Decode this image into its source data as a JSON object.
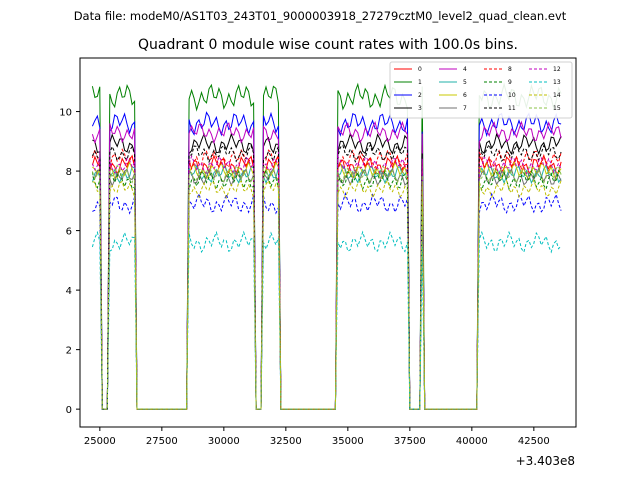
{
  "chart_data": {
    "type": "line",
    "suptitle": "Data file: modeM0/AS1T03_243T01_9000003918_27279cztM0_level2_quad_clean.evt",
    "title": "Quadrant 0 module wise count rates with 100.0s bins.",
    "xlabel": "",
    "ylabel": "",
    "x_offset_label": "+3.403e8",
    "xlim": [
      24200,
      44200
    ],
    "ylim": [
      -0.6,
      11.8
    ],
    "x_ticks": [
      25000,
      27500,
      30000,
      32500,
      35000,
      37500,
      40000,
      42500
    ],
    "x_tick_labels": [
      "25000",
      "27500",
      "30000",
      "32500",
      "35000",
      "37500",
      "40000",
      "42500"
    ],
    "y_ticks": [
      0,
      2,
      4,
      6,
      8,
      10
    ],
    "y_tick_labels": [
      "0",
      "2",
      "4",
      "6",
      "8",
      "10"
    ],
    "legend_position": "top-right",
    "segments": [
      {
        "start": 24700,
        "end": 25000,
        "kind": "full"
      },
      {
        "start": 25100,
        "end": 25300,
        "kind": "gap"
      },
      {
        "start": 25400,
        "end": 26400,
        "kind": "full"
      },
      {
        "start": 26500,
        "end": 28500,
        "kind": "gap"
      },
      {
        "start": 28600,
        "end": 31200,
        "kind": "full"
      },
      {
        "start": 31300,
        "end": 31500,
        "kind": "gap"
      },
      {
        "start": 31600,
        "end": 32200,
        "kind": "full"
      },
      {
        "start": 32300,
        "end": 34500,
        "kind": "gap"
      },
      {
        "start": 34600,
        "end": 37400,
        "kind": "full"
      },
      {
        "start": 37500,
        "end": 37900,
        "kind": "gap"
      },
      {
        "start": 38000,
        "end": 38000,
        "kind": "full"
      },
      {
        "start": 38100,
        "end": 40200,
        "kind": "gap"
      },
      {
        "start": 40300,
        "end": 43600,
        "kind": "full"
      }
    ],
    "series": [
      {
        "name": "0",
        "color": "#ff0000",
        "dash": "solid",
        "level": 8.2,
        "amp": 0.35
      },
      {
        "name": "1",
        "color": "#008000",
        "dash": "solid",
        "level": 10.5,
        "amp": 0.45
      },
      {
        "name": "2",
        "color": "#0000ff",
        "dash": "solid",
        "level": 9.6,
        "amp": 0.4
      },
      {
        "name": "3",
        "color": "#000000",
        "dash": "solid",
        "level": 8.9,
        "amp": 0.35
      },
      {
        "name": "4",
        "color": "#bf00bf",
        "dash": "solid",
        "level": 9.3,
        "amp": 0.35
      },
      {
        "name": "5",
        "color": "#20b2aa",
        "dash": "solid",
        "level": 7.9,
        "amp": 0.3
      },
      {
        "name": "6",
        "color": "#c8c800",
        "dash": "solid",
        "level": 8.0,
        "amp": 0.3
      },
      {
        "name": "7",
        "color": "#707070",
        "dash": "solid",
        "level": 7.8,
        "amp": 0.3
      },
      {
        "name": "8",
        "color": "#ff0000",
        "dash": "dashed",
        "level": 8.4,
        "amp": 0.35
      },
      {
        "name": "9",
        "color": "#008000",
        "dash": "dashed",
        "level": 7.7,
        "amp": 0.35
      },
      {
        "name": "10",
        "color": "#0000ff",
        "dash": "dashed",
        "level": 6.9,
        "amp": 0.35
      },
      {
        "name": "11",
        "color": "#000000",
        "dash": "dashed",
        "level": 8.6,
        "amp": 0.3
      },
      {
        "name": "12",
        "color": "#bf00bf",
        "dash": "dashed",
        "level": 8.2,
        "amp": 0.3
      },
      {
        "name": "13",
        "color": "#00bfbf",
        "dash": "dashed",
        "level": 5.6,
        "amp": 0.35
      },
      {
        "name": "14",
        "color": "#bfbf00",
        "dash": "dashed",
        "level": 7.4,
        "amp": 0.3
      },
      {
        "name": "15",
        "color": "#8bc34a",
        "dash": "dashed",
        "level": 7.9,
        "amp": 0.3
      }
    ]
  }
}
